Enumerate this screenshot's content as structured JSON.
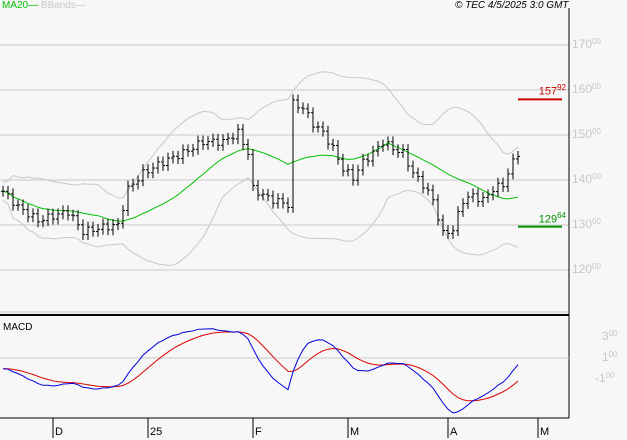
{
  "legend": {
    "ma": "MA20",
    "bbands": "BBands",
    "ma_color": "#00c000",
    "bb_color": "#c8c8c8"
  },
  "copyright": "© TEC 4/5/2025 3:0 GMT",
  "price_axis": [
    {
      "v": 170,
      "int": "170",
      "dec": "00"
    },
    {
      "v": 160,
      "int": "160",
      "dec": "00"
    },
    {
      "v": 150,
      "int": "150",
      "dec": "00"
    },
    {
      "v": 140,
      "int": "140",
      "dec": "00"
    },
    {
      "v": 130,
      "int": "130",
      "dec": "00"
    },
    {
      "v": 120,
      "int": "120",
      "dec": "00"
    }
  ],
  "resistance": {
    "value": 157.92,
    "int": "157",
    "dec": "92",
    "color": "#cc0000"
  },
  "support": {
    "value": 129.64,
    "int": "129",
    "dec": "64",
    "color": "#009000"
  },
  "macd": {
    "label": "MACD",
    "axis": [
      {
        "v": 300,
        "int": "3",
        "dec": "00"
      },
      {
        "v": 100,
        "int": "1",
        "dec": "00"
      },
      {
        "v": -100,
        "int": "-1",
        "dec": "00"
      }
    ],
    "macd_color": "#0000dd",
    "signal_color": "#dd0000"
  },
  "x_labels": [
    {
      "t": "D",
      "i": 5
    },
    {
      "t": "25",
      "i": 24
    },
    {
      "t": "F",
      "i": 45
    },
    {
      "t": "M",
      "i": 64
    },
    {
      "t": "A",
      "i": 84
    },
    {
      "t": "M",
      "i": 102
    }
  ],
  "closes_anchor": [
    [
      0,
      137.5
    ],
    [
      3,
      134
    ],
    [
      7,
      131
    ],
    [
      10,
      132
    ],
    [
      13,
      133
    ],
    [
      16,
      128.5
    ],
    [
      20,
      129.5
    ],
    [
      23,
      130
    ],
    [
      25,
      138
    ],
    [
      28,
      141.5
    ],
    [
      32,
      144
    ],
    [
      36,
      146
    ],
    [
      40,
      148.5
    ],
    [
      44,
      148.5
    ],
    [
      47,
      150.5
    ],
    [
      49,
      146
    ],
    [
      50,
      138
    ],
    [
      53,
      136
    ],
    [
      57,
      134.5
    ],
    [
      58,
      157
    ],
    [
      60,
      156
    ],
    [
      62,
      152.5
    ],
    [
      64,
      150.5
    ],
    [
      66,
      147
    ],
    [
      68,
      142.5
    ],
    [
      70,
      140.5
    ],
    [
      72,
      144
    ],
    [
      74,
      146
    ],
    [
      76,
      148.5
    ],
    [
      78,
      147
    ],
    [
      80,
      146
    ],
    [
      82,
      141.5
    ],
    [
      84,
      139
    ],
    [
      86,
      135.5
    ],
    [
      88,
      128
    ],
    [
      90,
      129
    ],
    [
      92,
      135.5
    ],
    [
      94,
      136.5
    ],
    [
      96,
      135.5
    ],
    [
      98,
      138
    ],
    [
      100,
      139
    ],
    [
      102,
      144
    ],
    [
      103,
      146
    ]
  ]
}
